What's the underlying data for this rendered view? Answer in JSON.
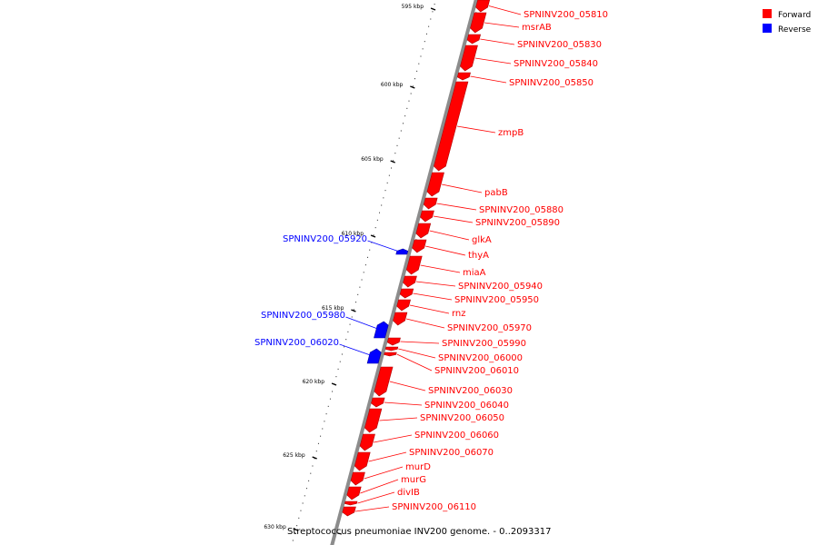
{
  "caption": "Streptococcus pneumoniae INV200 genome. - 0..2093317",
  "legend": [
    {
      "label": "Forward",
      "color": "#ff0000"
    },
    {
      "label": "Reverse",
      "color": "#0000ff"
    }
  ],
  "ticks": [
    "595 kbp",
    "600 kbp",
    "605 kbp",
    "610 kbp",
    "615 kbp",
    "620 kbp",
    "625 kbp",
    "630 kbp"
  ],
  "colors": {
    "forward": "#ff0000",
    "reverse": "#0000ff",
    "backbone": "#8c8c8c",
    "leader_forward": "#ff0000",
    "leader_reverse": "#0000ff"
  },
  "genes": [
    {
      "name": "SPNINV200_05810",
      "strand": "forward"
    },
    {
      "name": "msrAB",
      "strand": "forward"
    },
    {
      "name": "SPNINV200_05830",
      "strand": "forward"
    },
    {
      "name": "SPNINV200_05840",
      "strand": "forward"
    },
    {
      "name": "SPNINV200_05850",
      "strand": "forward"
    },
    {
      "name": "zmpB",
      "strand": "forward"
    },
    {
      "name": "pabB",
      "strand": "forward"
    },
    {
      "name": "SPNINV200_05880",
      "strand": "forward"
    },
    {
      "name": "SPNINV200_05890",
      "strand": "forward"
    },
    {
      "name": "glkA",
      "strand": "forward"
    },
    {
      "name": "thyA",
      "strand": "forward"
    },
    {
      "name": "miaA",
      "strand": "forward"
    },
    {
      "name": "SPNINV200_05940",
      "strand": "forward"
    },
    {
      "name": "SPNINV200_05950",
      "strand": "forward"
    },
    {
      "name": "rnz",
      "strand": "forward"
    },
    {
      "name": "SPNINV200_05970",
      "strand": "forward"
    },
    {
      "name": "SPNINV200_05990",
      "strand": "forward"
    },
    {
      "name": "SPNINV200_06000",
      "strand": "forward"
    },
    {
      "name": "SPNINV200_06010",
      "strand": "forward"
    },
    {
      "name": "SPNINV200_06030",
      "strand": "forward"
    },
    {
      "name": "SPNINV200_06040",
      "strand": "forward"
    },
    {
      "name": "SPNINV200_06050",
      "strand": "forward"
    },
    {
      "name": "SPNINV200_06060",
      "strand": "forward"
    },
    {
      "name": "SPNINV200_06070",
      "strand": "forward"
    },
    {
      "name": "murD",
      "strand": "forward"
    },
    {
      "name": "murG",
      "strand": "forward"
    },
    {
      "name": "divIB",
      "strand": "forward"
    },
    {
      "name": "SPNINV200_06110",
      "strand": "forward"
    },
    {
      "name": "SPNINV200_05920",
      "strand": "reverse"
    },
    {
      "name": "SPNINV200_05980",
      "strand": "reverse"
    },
    {
      "name": "SPNINV200_06020",
      "strand": "reverse"
    }
  ]
}
